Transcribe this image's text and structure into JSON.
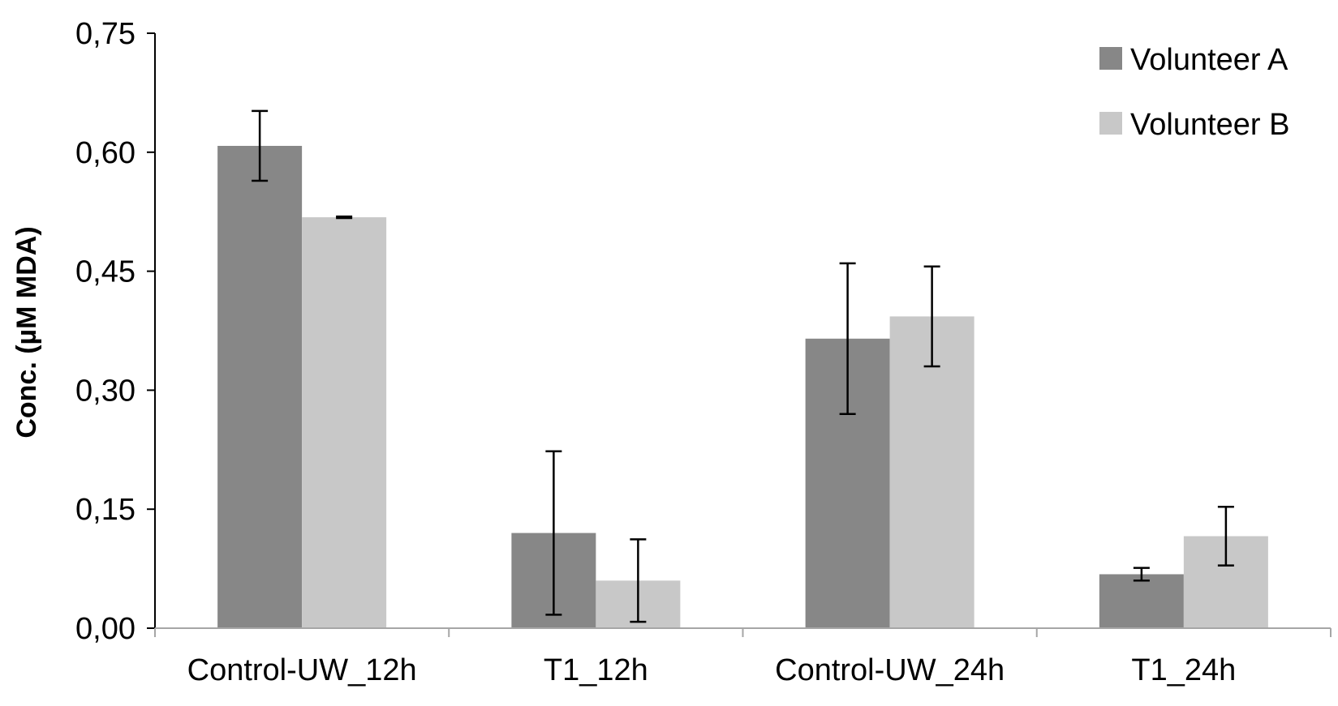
{
  "chart_data": {
    "type": "bar",
    "title": "",
    "xlabel": "",
    "ylabel": "Conc. (µM MDA)",
    "ylim": [
      0,
      0.75
    ],
    "yticks": [
      0,
      0.15,
      0.3,
      0.45,
      0.6,
      0.75
    ],
    "ytick_labels": [
      "0,00",
      "0,15",
      "0,30",
      "0,45",
      "0,60",
      "0,75"
    ],
    "categories": [
      "Control-UW_12h",
      "T1_12h",
      "Control-UW_24h",
      "T1_24h"
    ],
    "series": [
      {
        "name": "Volunteer A",
        "color": "#878787",
        "values": [
          0.608,
          0.12,
          0.365,
          0.068
        ],
        "errors": [
          0.044,
          0.103,
          0.095,
          0.008
        ]
      },
      {
        "name": "Volunteer B",
        "color": "#c8c8c8",
        "values": [
          0.518,
          0.06,
          0.393,
          0.116
        ],
        "errors": [
          0.001,
          0.052,
          0.063,
          0.037
        ]
      }
    ],
    "legend_position": "top-right",
    "grid": false
  }
}
